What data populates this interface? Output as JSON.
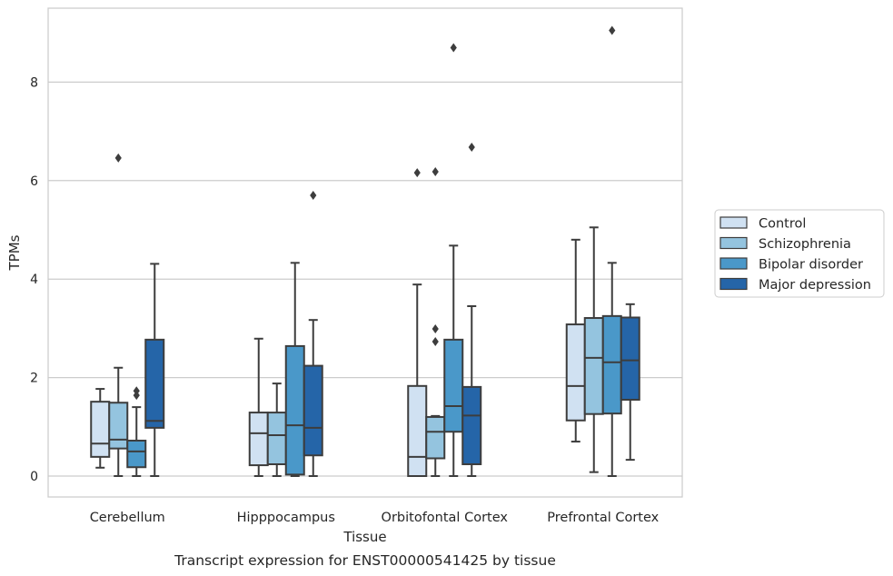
{
  "chart_data": {
    "type": "box",
    "xlabel": "Tissue",
    "ylabel": "TPMs",
    "caption": "Transcript expression for ENST00000541425 by tissue",
    "ylim": [
      -0.45,
      9.6
    ],
    "yticks": [
      0,
      2,
      4,
      6,
      8
    ],
    "categories": [
      "Cerebellum",
      "Hipppocampus",
      "Orbitofontal Cortex",
      "Prefrontal Cortex"
    ],
    "legend_position": "right",
    "grid": true,
    "colors": {
      "Control": "#d0e1f2",
      "Schizophrenia": "#94c4df",
      "Bipolar disorder": "#4a98c9",
      "Major depression": "#2565a8",
      "edge": "#3d3d3d",
      "grid": "#cccccc",
      "frame": "#cccccc"
    },
    "series": [
      {
        "name": "Control",
        "boxes": [
          {
            "whislo": 0.17,
            "q1": 0.39,
            "med": 0.66,
            "q3": 1.51,
            "whishi": 1.77,
            "fliers": []
          },
          {
            "whislo": 0.0,
            "q1": 0.22,
            "med": 0.87,
            "q3": 1.29,
            "whishi": 2.79,
            "fliers": []
          },
          {
            "whislo": 0.0,
            "q1": 0.0,
            "med": 0.39,
            "q3": 1.83,
            "whishi": 3.89,
            "fliers": [
              6.16
            ]
          },
          {
            "whislo": 0.7,
            "q1": 1.13,
            "med": 1.83,
            "q3": 3.08,
            "whishi": 4.8,
            "fliers": []
          }
        ]
      },
      {
        "name": "Schizophrenia",
        "boxes": [
          {
            "whislo": 0.0,
            "q1": 0.56,
            "med": 0.74,
            "q3": 1.49,
            "whishi": 2.2,
            "fliers": [
              6.46
            ]
          },
          {
            "whislo": 0.0,
            "q1": 0.24,
            "med": 0.83,
            "q3": 1.29,
            "whishi": 1.88,
            "fliers": []
          },
          {
            "whislo": 0.0,
            "q1": 0.36,
            "med": 0.9,
            "q3": 1.2,
            "whishi": 1.22,
            "fliers": [
              2.73,
              2.99,
              6.18
            ]
          },
          {
            "whislo": 0.08,
            "q1": 1.26,
            "med": 2.4,
            "q3": 3.21,
            "whishi": 5.05,
            "fliers": []
          }
        ]
      },
      {
        "name": "Bipolar disorder",
        "boxes": [
          {
            "whislo": 0.0,
            "q1": 0.18,
            "med": 0.5,
            "q3": 0.72,
            "whishi": 1.4,
            "fliers": [
              1.64,
              1.73
            ]
          },
          {
            "whislo": 0.0,
            "q1": 0.03,
            "med": 1.03,
            "q3": 2.64,
            "whishi": 4.33,
            "fliers": []
          },
          {
            "whislo": 0.0,
            "q1": 0.9,
            "med": 1.42,
            "q3": 2.77,
            "whishi": 4.68,
            "fliers": [
              8.7
            ]
          },
          {
            "whislo": 0.0,
            "q1": 1.27,
            "med": 2.31,
            "q3": 3.25,
            "whishi": 4.33,
            "fliers": [
              9.05
            ]
          }
        ]
      },
      {
        "name": "Major depression",
        "boxes": [
          {
            "whislo": 0.0,
            "q1": 0.98,
            "med": 1.12,
            "q3": 2.77,
            "whishi": 4.31,
            "fliers": []
          },
          {
            "whislo": 0.0,
            "q1": 0.42,
            "med": 0.98,
            "q3": 2.24,
            "whishi": 3.17,
            "fliers": [
              5.7
            ]
          },
          {
            "whislo": 0.0,
            "q1": 0.24,
            "med": 1.23,
            "q3": 1.81,
            "whishi": 3.45,
            "fliers": [
              6.68
            ]
          },
          {
            "whislo": 0.33,
            "q1": 1.55,
            "med": 2.35,
            "q3": 3.22,
            "whishi": 3.49,
            "fliers": []
          }
        ]
      }
    ]
  }
}
